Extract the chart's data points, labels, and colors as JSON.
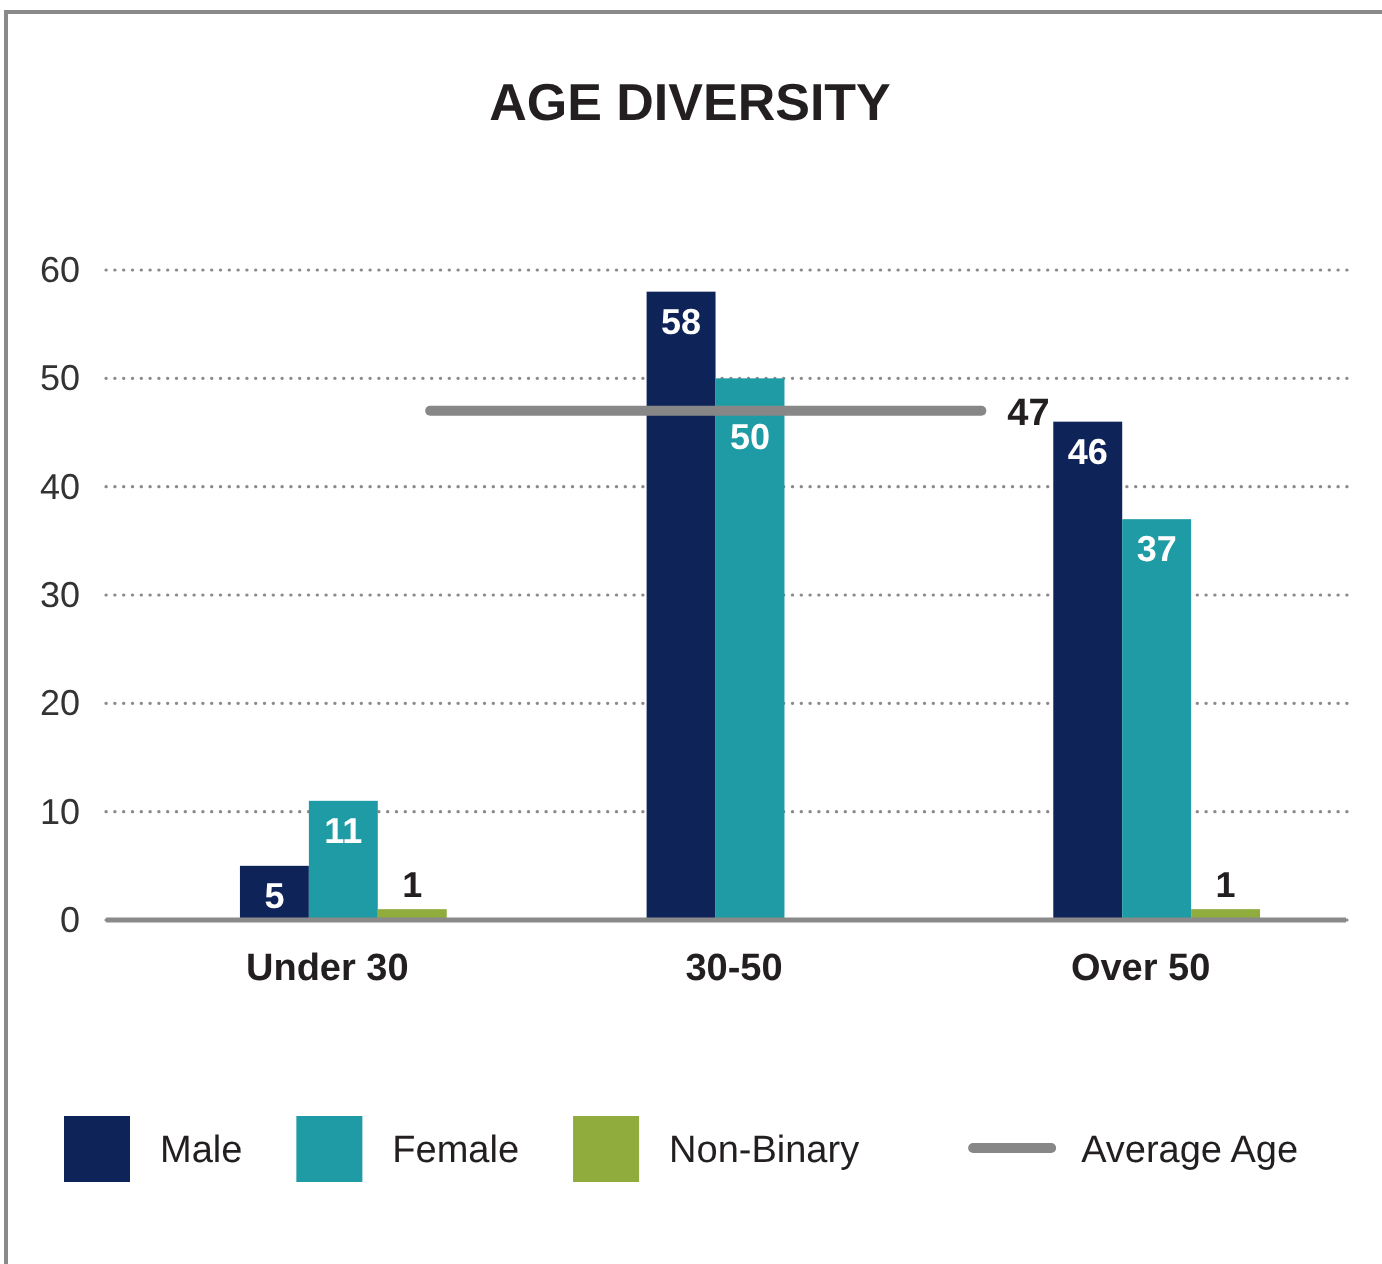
{
  "chart_data": {
    "type": "bar",
    "title": "AGE DIVERSITY",
    "categories": [
      "Under 30",
      "30-50",
      "Over 50"
    ],
    "series": [
      {
        "name": "Male",
        "color": "#0e2459",
        "values": [
          5,
          58,
          46
        ]
      },
      {
        "name": "Female",
        "color": "#1e9ba4",
        "values": [
          11,
          50,
          37
        ]
      },
      {
        "name": "Non-Binary",
        "color": "#8fac3c",
        "values": [
          1,
          null,
          1
        ]
      }
    ],
    "ylim": [
      0,
      60
    ],
    "yticks": [
      0,
      10,
      20,
      30,
      40,
      50,
      60
    ],
    "grid": "y",
    "legend": "bottom",
    "data_labels": true,
    "ref_lines": [
      {
        "axis": "y",
        "value": 47,
        "label": "Average Age",
        "color": "#878787"
      }
    ],
    "annotations": [
      "47"
    ]
  }
}
